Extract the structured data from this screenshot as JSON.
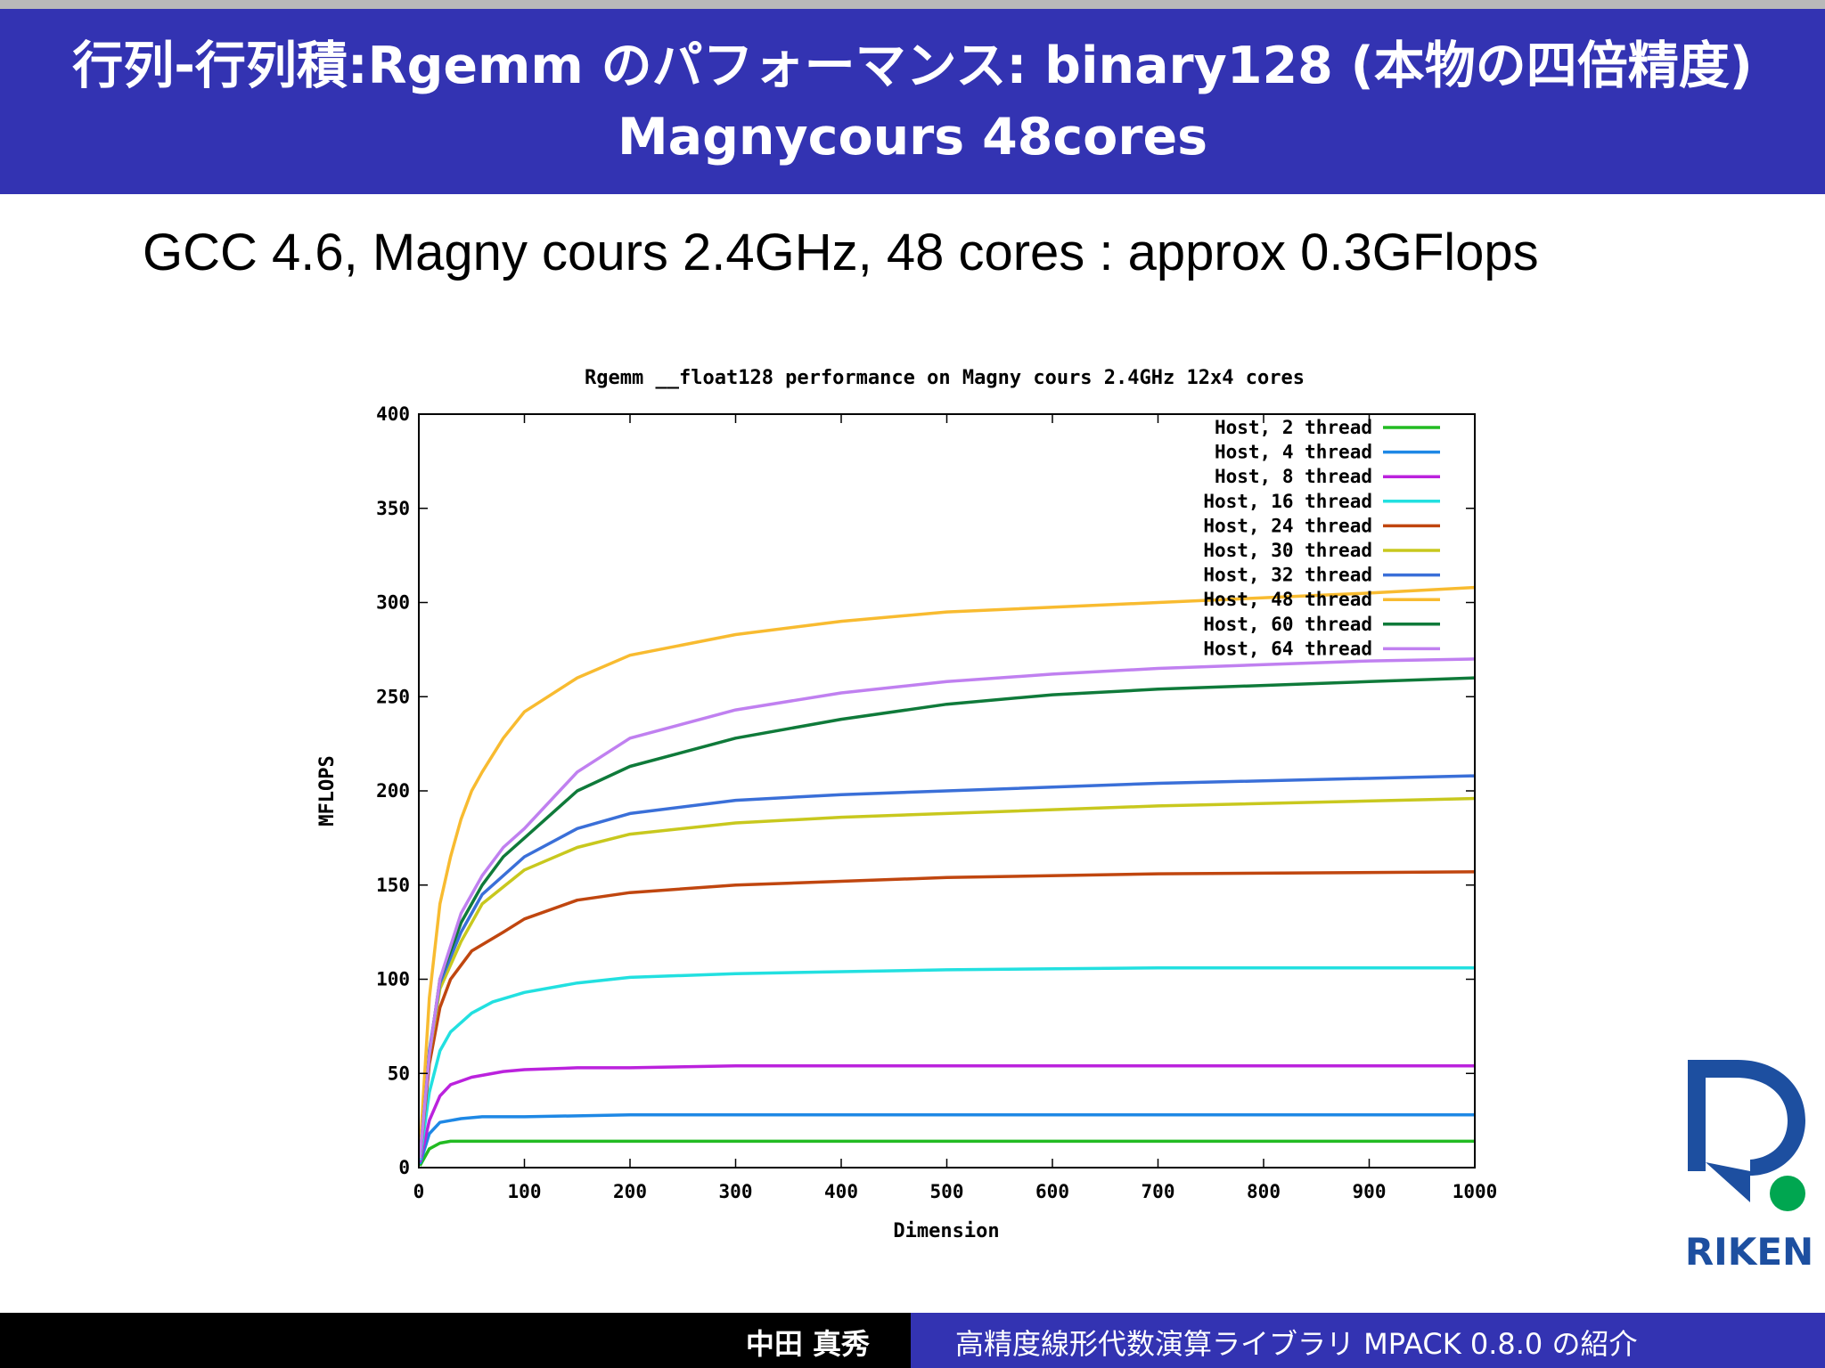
{
  "slide": {
    "title": "行列-行列積:Rgemm のパフォーマンス: binary128 (本物の四倍精度) Magnycours 48cores",
    "subtitle": "GCC 4.6, Magny cours 2.4GHz, 48 cores : approx 0.3GFlops",
    "logo_text": "RIKEN",
    "footer_author": "中田 真秀",
    "footer_title": "高精度線形代数演算ライブラリ MPACK 0.8.0 の紹介"
  },
  "colors": {
    "header_bg": "#3333b2",
    "logo_blue": "#1d4fa0",
    "logo_green": "#00a650"
  },
  "chart_data": {
    "type": "line",
    "title": "Rgemm __float128 performance on Magny cours 2.4GHz 12x4 cores",
    "xlabel": "Dimension",
    "ylabel": "MFLOPS",
    "xlim": [
      0,
      1000
    ],
    "ylim": [
      0,
      400
    ],
    "xticks": [
      "0",
      "100",
      "200",
      "300",
      "400",
      "500",
      "600",
      "700",
      "800",
      "900",
      "1000"
    ],
    "yticks": [
      "0",
      "50",
      "100",
      "150",
      "200",
      "250",
      "300",
      "350",
      "400"
    ],
    "legend_position": "top-right",
    "grid": false,
    "series": [
      {
        "name": "Host, 2 thread",
        "color": "#22bb22",
        "x": [
          1,
          10,
          20,
          30,
          50,
          100,
          1000
        ],
        "y": [
          1,
          10,
          13,
          14,
          14,
          14,
          14
        ]
      },
      {
        "name": "Host, 4 thread",
        "color": "#1e88e5",
        "x": [
          1,
          10,
          20,
          40,
          60,
          100,
          200,
          1000
        ],
        "y": [
          2,
          18,
          24,
          26,
          27,
          27,
          28,
          28
        ]
      },
      {
        "name": "Host, 8 thread",
        "color": "#bb22dd",
        "x": [
          1,
          10,
          20,
          30,
          50,
          80,
          100,
          150,
          200,
          300,
          1000
        ],
        "y": [
          3,
          25,
          38,
          44,
          48,
          51,
          52,
          53,
          53,
          54,
          54
        ]
      },
      {
        "name": "Host, 16 thread",
        "color": "#22e0e0",
        "x": [
          1,
          10,
          20,
          30,
          50,
          70,
          100,
          150,
          200,
          300,
          400,
          500,
          700,
          1000
        ],
        "y": [
          4,
          40,
          62,
          72,
          82,
          88,
          93,
          98,
          101,
          103,
          104,
          105,
          106,
          106
        ]
      },
      {
        "name": "Host, 24 thread",
        "color": "#c0460f",
        "x": [
          1,
          10,
          20,
          30,
          50,
          80,
          100,
          150,
          200,
          300,
          400,
          500,
          700,
          1000
        ],
        "y": [
          5,
          55,
          85,
          100,
          115,
          125,
          132,
          142,
          146,
          150,
          152,
          154,
          156,
          157
        ]
      },
      {
        "name": "Host, 30 thread",
        "color": "#c8c81e",
        "x": [
          1,
          10,
          20,
          40,
          60,
          100,
          150,
          200,
          300,
          400,
          500,
          700,
          1000
        ],
        "y": [
          5,
          60,
          95,
          120,
          140,
          158,
          170,
          177,
          183,
          186,
          188,
          192,
          196
        ]
      },
      {
        "name": "Host, 32 thread",
        "color": "#3a6fd8",
        "x": [
          1,
          10,
          20,
          40,
          60,
          100,
          150,
          200,
          300,
          400,
          500,
          700,
          1000
        ],
        "y": [
          5,
          62,
          98,
          125,
          145,
          165,
          180,
          188,
          195,
          198,
          200,
          204,
          208
        ]
      },
      {
        "name": "Host, 48 thread",
        "color": "#f8bb30",
        "x": [
          1,
          10,
          20,
          30,
          40,
          50,
          60,
          80,
          100,
          150,
          200,
          300,
          400,
          500,
          700,
          900,
          1000
        ],
        "y": [
          8,
          90,
          140,
          165,
          185,
          200,
          210,
          228,
          242,
          260,
          272,
          283,
          290,
          295,
          300,
          305,
          308
        ]
      },
      {
        "name": "Host, 60 thread",
        "color": "#0f7a3a",
        "x": [
          1,
          10,
          20,
          40,
          60,
          80,
          100,
          150,
          200,
          300,
          400,
          500,
          600,
          700,
          800,
          900,
          1000
        ],
        "y": [
          5,
          60,
          100,
          130,
          150,
          165,
          175,
          200,
          213,
          228,
          238,
          246,
          251,
          254,
          256,
          258,
          260
        ]
      },
      {
        "name": "Host, 64 thread",
        "color": "#c080f0",
        "x": [
          1,
          10,
          20,
          40,
          60,
          80,
          100,
          150,
          200,
          300,
          400,
          500,
          600,
          700,
          800,
          900,
          1000
        ],
        "y": [
          5,
          60,
          100,
          135,
          155,
          170,
          180,
          210,
          228,
          243,
          252,
          258,
          262,
          265,
          267,
          269,
          270
        ]
      }
    ]
  }
}
